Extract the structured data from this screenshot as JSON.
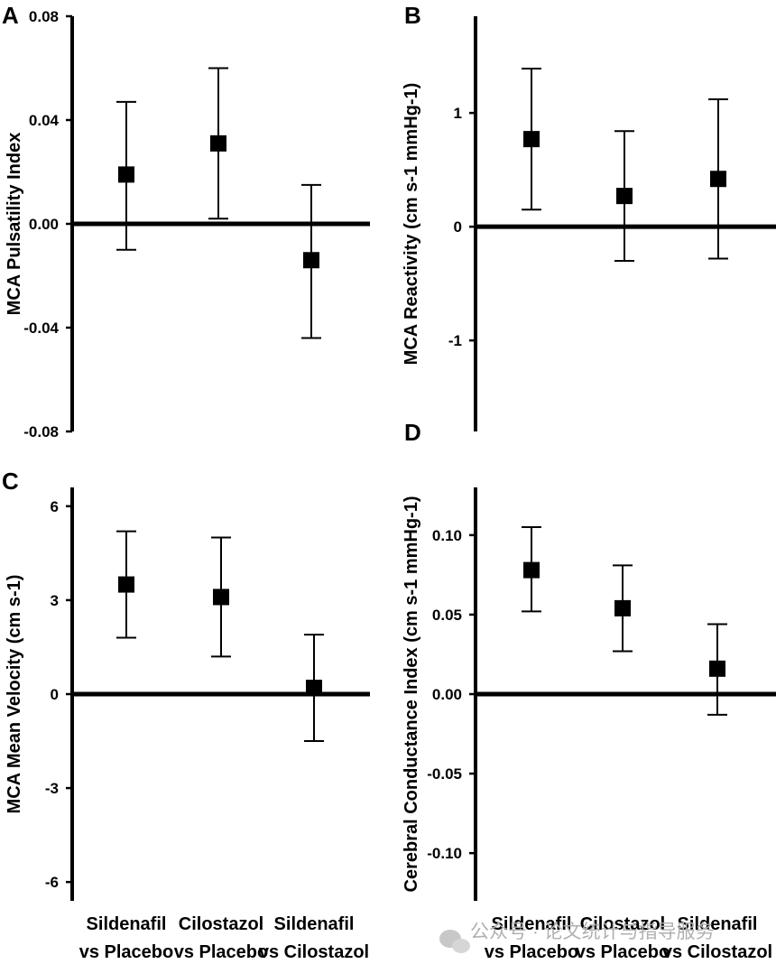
{
  "chart_data": [
    {
      "panel": "A",
      "type": "scatter",
      "ylabel": "MCA Pulsatility Index",
      "ylim": [
        -0.08,
        0.08
      ],
      "ticks": [
        0.08,
        0.04,
        0.0,
        -0.04,
        -0.08
      ],
      "tick_labels": [
        "0.08",
        "0.04",
        "0.00",
        "-0.04",
        "-0.08"
      ],
      "categories": [
        "Sildenafil vs Placebo",
        "Cilostazol vs Placebo",
        "Sildenafil vs Cilostazol"
      ],
      "values": [
        0.019,
        0.031,
        -0.014
      ],
      "ci_low": [
        -0.01,
        0.002,
        -0.044
      ],
      "ci_high": [
        0.047,
        0.06,
        0.015
      ]
    },
    {
      "panel": "B",
      "type": "scatter",
      "ylabel": "MCA Reactivity (cm s-1 mmHg-1)",
      "ylim": [
        -1.8,
        1.85
      ],
      "ticks": [
        1,
        0,
        -1
      ],
      "tick_labels": [
        "1",
        "0",
        "-1"
      ],
      "categories": [
        "Sildenafil vs Placebo",
        "Cilostazol vs Placebo",
        "Sildenafil vs Cilostazol"
      ],
      "values": [
        0.77,
        0.27,
        0.42
      ],
      "ci_low": [
        0.15,
        -0.3,
        -0.28
      ],
      "ci_high": [
        1.39,
        0.84,
        1.12
      ]
    },
    {
      "panel": "C",
      "type": "scatter",
      "ylabel": "MCA Mean Velocity (cm s-1)",
      "ylim": [
        -6.6,
        6.6
      ],
      "ticks": [
        6,
        3,
        0,
        -3,
        -6
      ],
      "tick_labels": [
        "6",
        "3",
        "0",
        "-3",
        "-6"
      ],
      "categories": [
        "Sildenafil vs Placebo",
        "Cilostazol vs Placebo",
        "Sildenafil vs Cilostazol"
      ],
      "values": [
        3.5,
        3.1,
        0.2
      ],
      "ci_low": [
        1.8,
        1.2,
        -1.5
      ],
      "ci_high": [
        5.2,
        5.0,
        1.9
      ]
    },
    {
      "panel": "D",
      "type": "scatter",
      "ylabel": "Cerebral Conductance Index (cm s-1 mmHg-1)",
      "ylim": [
        -0.13,
        0.13
      ],
      "ticks": [
        0.1,
        0.05,
        0.0,
        -0.05,
        -0.1
      ],
      "tick_labels": [
        "0.10",
        "0.05",
        "0.00",
        "-0.05",
        "-0.10"
      ],
      "categories": [
        "Sildenafil vs Placebo",
        "Cilostazol vs Placebo",
        "Sildenafil vs Cilostazol"
      ],
      "values": [
        0.078,
        0.054,
        0.016
      ],
      "ci_low": [
        0.052,
        0.027,
        -0.013
      ],
      "ci_high": [
        0.105,
        0.081,
        0.044
      ]
    }
  ],
  "x_labels": [
    [
      "Sildenafil",
      "vs Placebo"
    ],
    [
      "Cilostazol",
      "vs Placebo"
    ],
    [
      "Sildenafil",
      "vs Cilostazol"
    ]
  ],
  "watermark": "公众号 · 论文统计与指导服务"
}
